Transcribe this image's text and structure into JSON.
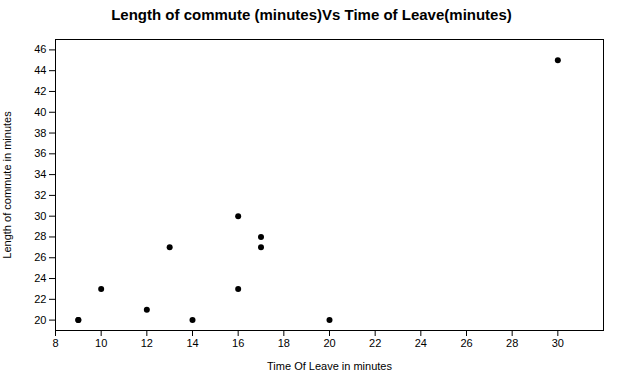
{
  "chart_data": {
    "type": "scatter",
    "title": "Length of commute (minutes)Vs Time of Leave(minutes)",
    "xlabel": "Time Of Leave in minutes",
    "ylabel": "Length of commute in minutes",
    "x": [
      9,
      9,
      10,
      12,
      13,
      14,
      16,
      16,
      17,
      17,
      20,
      30
    ],
    "values": [
      20,
      20,
      23,
      21,
      27,
      20,
      30,
      23,
      27,
      28,
      20,
      45
    ],
    "xlim": [
      8,
      32
    ],
    "ylim": [
      19,
      47
    ],
    "xticks": [
      8,
      10,
      12,
      14,
      16,
      18,
      20,
      22,
      24,
      26,
      28,
      30
    ],
    "yticks": [
      20,
      22,
      24,
      26,
      28,
      30,
      32,
      34,
      36,
      38,
      40,
      42,
      44,
      46
    ],
    "color": "black",
    "marker": "circle",
    "grid": false
  }
}
